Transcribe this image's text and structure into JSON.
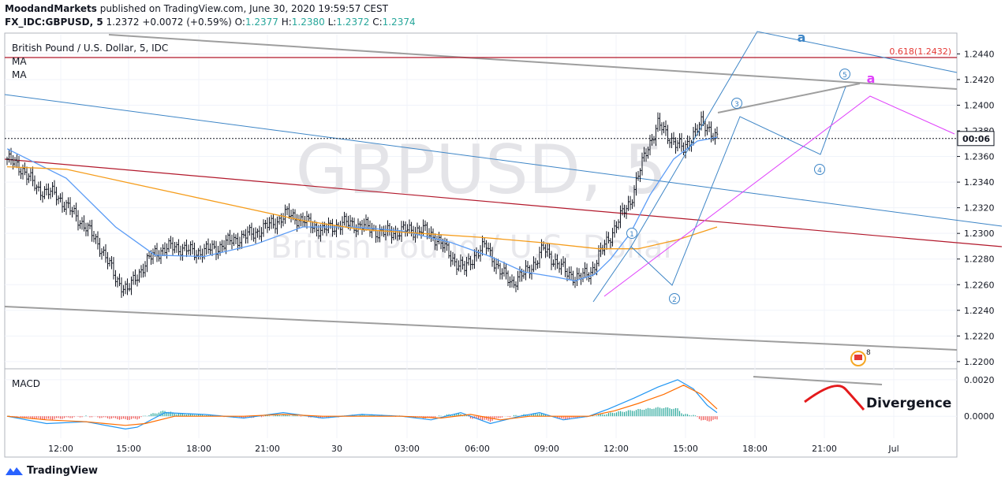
{
  "header": {
    "publisher": "MoodandMarkets",
    "published_text": " published on TradingView.com, June 30, 2020 19:59:57 CEST",
    "symbol": "FX_IDC:GBPUSD, 5",
    "last": "1.2372",
    "change": "+0.0072 (+0.59%)",
    "o_label": "O:",
    "o": "1.2377",
    "h_label": "H:",
    "h": "1.2380",
    "l_label": "L:",
    "l": "1.2372",
    "c_label": "C:",
    "c": "1.2374"
  },
  "legend": {
    "instrument": "British Pound / U.S. Dollar, 5, IDC",
    "ma1": "MA",
    "ma2": "MA",
    "macd": "MACD"
  },
  "watermark": {
    "big": "GBPUSD, 5",
    "small": "British Pound / U.S. Dollar"
  },
  "price_tag": "00:06",
  "fib_label": "0.618(1.2432)",
  "annotations": {
    "wave_a_blue": "a",
    "wave_a_magenta": "a",
    "divergence": "Divergence",
    "waves": [
      "1",
      "2",
      "3",
      "4",
      "5"
    ],
    "event_count": "8"
  },
  "footer": {
    "brand": "TradingView"
  },
  "colors": {
    "candle": "#131722",
    "ma_fast": "#5b9cf6",
    "ma_slow": "#f59c1a",
    "fib": "#b2182b",
    "channel": "#9e9e9e",
    "wave": "#3d85c6",
    "magenta": "#e040fb",
    "divergence": "#e41a1c",
    "macd_line": "#2196f3",
    "signal_line": "#ff6d00"
  },
  "chart_data": [
    {
      "type": "candlestick",
      "title": "British Pound / U.S. Dollar, 5, IDC",
      "ylim": [
        1.2195,
        1.2455
      ],
      "y_ticks": [
        "1.2440",
        "1.2420",
        "1.2400",
        "1.2380",
        "1.2360",
        "1.2340",
        "1.2320",
        "1.2300",
        "1.2280",
        "1.2260",
        "1.2240",
        "1.2220",
        "1.2200"
      ],
      "x_ticks": [
        "12:00",
        "15:00",
        "18:00",
        "21:00",
        "30",
        "03:00",
        "06:00",
        "09:00",
        "12:00",
        "15:00",
        "18:00",
        "21:00",
        "Jul"
      ],
      "close_path": [
        [
          0,
          1.2358
        ],
        [
          8,
          1.235
        ],
        [
          15,
          1.2335
        ],
        [
          25,
          1.233
        ],
        [
          32,
          1.2318
        ],
        [
          40,
          1.2305
        ],
        [
          48,
          1.2288
        ],
        [
          55,
          1.2265
        ],
        [
          61,
          1.2255
        ],
        [
          66,
          1.2268
        ],
        [
          75,
          1.2285
        ],
        [
          85,
          1.229
        ],
        [
          95,
          1.2285
        ],
        [
          105,
          1.2288
        ],
        [
          115,
          1.2295
        ],
        [
          125,
          1.23
        ],
        [
          135,
          1.2308
        ],
        [
          142,
          1.2315
        ],
        [
          150,
          1.231
        ],
        [
          160,
          1.2302
        ],
        [
          170,
          1.2308
        ],
        [
          180,
          1.2306
        ],
        [
          190,
          1.23
        ],
        [
          200,
          1.2302
        ],
        [
          210,
          1.2303
        ],
        [
          218,
          1.2296
        ],
        [
          226,
          1.228
        ],
        [
          232,
          1.2272
        ],
        [
          238,
          1.2285
        ],
        [
          243,
          1.229
        ],
        [
          250,
          1.227
        ],
        [
          256,
          1.2262
        ],
        [
          262,
          1.2268
        ],
        [
          268,
          1.2278
        ],
        [
          272,
          1.2288
        ],
        [
          278,
          1.2278
        ],
        [
          283,
          1.227
        ],
        [
          290,
          1.2265
        ],
        [
          296,
          1.227
        ],
        [
          300,
          1.2282
        ],
        [
          305,
          1.2296
        ],
        [
          310,
          1.231
        ],
        [
          316,
          1.2325
        ],
        [
          320,
          1.2345
        ],
        [
          325,
          1.2368
        ],
        [
          330,
          1.2385
        ],
        [
          334,
          1.2378
        ],
        [
          338,
          1.2372
        ],
        [
          343,
          1.2365
        ],
        [
          348,
          1.2378
        ],
        [
          352,
          1.2385
        ],
        [
          356,
          1.2382
        ],
        [
          360,
          1.2374
        ]
      ],
      "moving_averages": [
        {
          "name": "MA",
          "color": "#5b9cf6",
          "points": [
            [
              0,
              1.2366
            ],
            [
              30,
              1.2343
            ],
            [
              55,
              1.2305
            ],
            [
              75,
              1.2283
            ],
            [
              100,
              1.2282
            ],
            [
              125,
              1.2291
            ],
            [
              150,
              1.2305
            ],
            [
              175,
              1.2305
            ],
            [
              200,
              1.2302
            ],
            [
              225,
              1.2293
            ],
            [
              245,
              1.2282
            ],
            [
              262,
              1.227
            ],
            [
              278,
              1.2266
            ],
            [
              288,
              1.2263
            ],
            [
              298,
              1.2268
            ],
            [
              306,
              1.228
            ],
            [
              316,
              1.23
            ],
            [
              326,
              1.233
            ],
            [
              338,
              1.2358
            ],
            [
              350,
              1.2372
            ],
            [
              360,
              1.2375
            ]
          ]
        },
        {
          "name": "MA",
          "color": "#f59c1a",
          "points": [
            [
              0,
              1.2352
            ],
            [
              30,
              1.235
            ],
            [
              60,
              1.234
            ],
            [
              90,
              1.233
            ],
            [
              120,
              1.232
            ],
            [
              150,
              1.231
            ],
            [
              180,
              1.2303
            ],
            [
              210,
              1.23
            ],
            [
              240,
              1.2297
            ],
            [
              270,
              1.2293
            ],
            [
              300,
              1.2288
            ],
            [
              320,
              1.2288
            ],
            [
              340,
              1.2295
            ],
            [
              360,
              1.2305
            ]
          ]
        }
      ]
    },
    {
      "type": "line",
      "title": "MACD",
      "ylim": [
        -0.0012,
        0.0026
      ],
      "y_ticks": [
        "0.0020",
        "0.0000"
      ],
      "series": [
        {
          "name": "MACD",
          "points": [
            [
              0,
              0.0
            ],
            [
              20,
              -0.0004
            ],
            [
              40,
              -0.0003
            ],
            [
              60,
              -0.0007
            ],
            [
              66,
              -0.0006
            ],
            [
              80,
              0.0002
            ],
            [
              100,
              0.0001
            ],
            [
              120,
              -0.0001
            ],
            [
              140,
              0.0002
            ],
            [
              160,
              -0.0001
            ],
            [
              180,
              0.0001
            ],
            [
              200,
              0.0
            ],
            [
              215,
              -0.0002
            ],
            [
              230,
              0.0002
            ],
            [
              245,
              -0.0004
            ],
            [
              260,
              0.0
            ],
            [
              270,
              0.0002
            ],
            [
              282,
              -0.0002
            ],
            [
              295,
              0.0
            ],
            [
              305,
              0.0004
            ],
            [
              318,
              0.001
            ],
            [
              330,
              0.0016
            ],
            [
              340,
              0.002
            ],
            [
              348,
              0.0015
            ],
            [
              355,
              0.0006
            ],
            [
              360,
              0.0002
            ]
          ]
        },
        {
          "name": "Signal",
          "points": [
            [
              0,
              0.0
            ],
            [
              20,
              -0.0002
            ],
            [
              40,
              -0.0003
            ],
            [
              60,
              -0.0005
            ],
            [
              70,
              -0.0004
            ],
            [
              85,
              0.0
            ],
            [
              100,
              0.0
            ],
            [
              120,
              0.0
            ],
            [
              140,
              0.0001
            ],
            [
              160,
              0.0
            ],
            [
              180,
              0.0
            ],
            [
              200,
              0.0
            ],
            [
              220,
              -0.0001
            ],
            [
              235,
              0.0001
            ],
            [
              250,
              -0.0002
            ],
            [
              265,
              0.0
            ],
            [
              280,
              0.0
            ],
            [
              295,
              0.0
            ],
            [
              308,
              0.0003
            ],
            [
              320,
              0.0007
            ],
            [
              333,
              0.0012
            ],
            [
              343,
              0.0017
            ],
            [
              352,
              0.0012
            ],
            [
              360,
              0.0004
            ]
          ]
        }
      ]
    }
  ]
}
